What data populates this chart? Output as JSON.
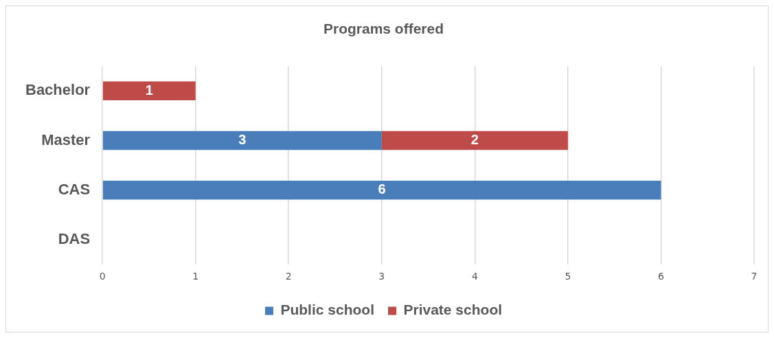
{
  "chart_data": {
    "type": "bar",
    "orientation": "horizontal",
    "stacked": true,
    "title": "Programs offered",
    "categories": [
      "Bachelor",
      "Master",
      "CAS",
      "DAS"
    ],
    "series": [
      {
        "name": "Public school",
        "color": "#4a7ebb",
        "values": [
          null,
          3,
          6,
          null
        ]
      },
      {
        "name": "Private school",
        "color": "#be4b48",
        "values": [
          1,
          2,
          null,
          null
        ]
      }
    ],
    "xlim": [
      0,
      7
    ],
    "xticks": [
      0,
      1,
      2,
      3,
      4,
      5,
      6,
      7
    ],
    "grid": "x",
    "legend": "bottom",
    "data_labels": true
  }
}
